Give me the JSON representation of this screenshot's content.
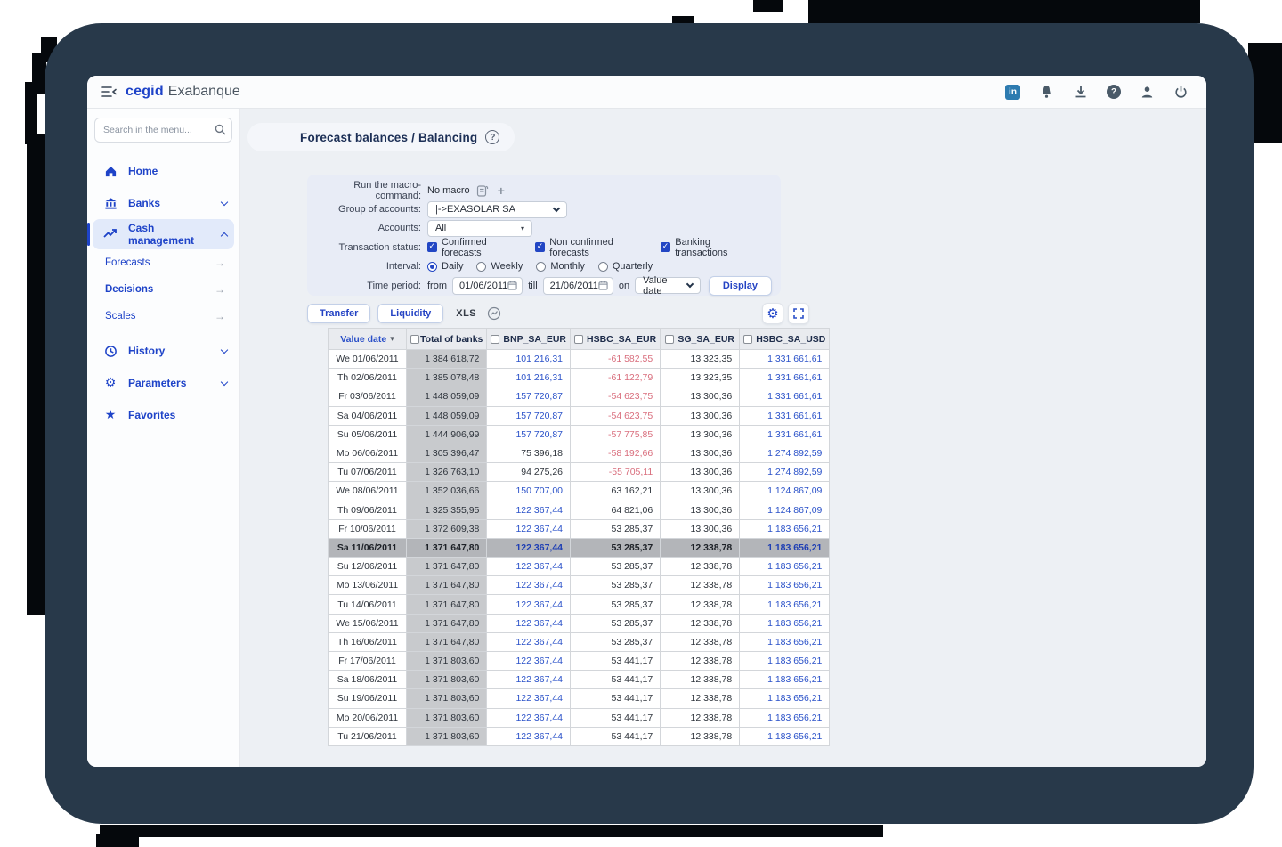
{
  "icons": {
    "linkedin": "in",
    "help": "?",
    "plus": "+",
    "star": "★",
    "gear": "⚙",
    "sub_arrow": "→",
    "sort_desc": "▾",
    "dropdown_caret": "▾"
  },
  "topbar": {
    "brand_bold": "cegid",
    "brand_rest": "Exabanque"
  },
  "sidebar": {
    "search_placeholder": "Search in the menu...",
    "items": [
      {
        "label": "Home"
      },
      {
        "label": "Banks"
      },
      {
        "label": "Cash management"
      },
      {
        "label": "Forecasts"
      },
      {
        "label": "Decisions"
      },
      {
        "label": "Scales"
      },
      {
        "label": "History"
      },
      {
        "label": "Parameters"
      },
      {
        "label": "Favorites"
      }
    ]
  },
  "page": {
    "title": "Forecast balances / Balancing"
  },
  "form": {
    "macro_label": "Run the macro-command:",
    "macro_value": "No macro",
    "group_label": "Group of accounts:",
    "group_value": "|->EXASOLAR SA",
    "accounts_label": "Accounts:",
    "accounts_value": "All",
    "status_label": "Transaction status:",
    "status_options": [
      "Confirmed forecasts",
      "Non confirmed forecasts",
      "Banking transactions"
    ],
    "interval_label": "Interval:",
    "interval_options": [
      {
        "label": "Daily",
        "selected": true
      },
      {
        "label": "Weekly",
        "selected": false
      },
      {
        "label": "Monthly",
        "selected": false
      },
      {
        "label": "Quarterly",
        "selected": false
      }
    ],
    "period_label": "Time period:",
    "from_label": "from",
    "from_value": "01/06/2011",
    "till_label": "till",
    "till_value": "21/06/2011",
    "on_label": "on",
    "on_value": "Value date",
    "display_button": "Display"
  },
  "toolbar": {
    "transfer": "Transfer",
    "liquidity": "Liquidity",
    "xls": "XLS"
  },
  "table": {
    "columns": [
      "Value date",
      "Total of banks",
      "BNP_SA_EUR",
      "HSBC_SA_EUR",
      "SG_SA_EUR",
      "HSBC_SA_USD"
    ],
    "rows": [
      {
        "d": "We 01/06/2011",
        "sel": false,
        "c": [
          [
            "1 384 618,72",
            "dark"
          ],
          [
            "101 216,31",
            "blue"
          ],
          [
            "-61 582,55",
            "red"
          ],
          [
            "13 323,35",
            "dark"
          ],
          [
            "1 331 661,61",
            "blue"
          ]
        ]
      },
      {
        "d": "Th 02/06/2011",
        "sel": false,
        "c": [
          [
            "1 385 078,48",
            "dark"
          ],
          [
            "101 216,31",
            "blue"
          ],
          [
            "-61 122,79",
            "red"
          ],
          [
            "13 323,35",
            "dark"
          ],
          [
            "1 331 661,61",
            "blue"
          ]
        ]
      },
      {
        "d": "Fr 03/06/2011",
        "sel": false,
        "c": [
          [
            "1 448 059,09",
            "dark"
          ],
          [
            "157 720,87",
            "blue"
          ],
          [
            "-54 623,75",
            "red"
          ],
          [
            "13 300,36",
            "dark"
          ],
          [
            "1 331 661,61",
            "blue"
          ]
        ]
      },
      {
        "d": "Sa 04/06/2011",
        "sel": false,
        "c": [
          [
            "1 448 059,09",
            "dark"
          ],
          [
            "157 720,87",
            "blue"
          ],
          [
            "-54 623,75",
            "red"
          ],
          [
            "13 300,36",
            "dark"
          ],
          [
            "1 331 661,61",
            "blue"
          ]
        ]
      },
      {
        "d": "Su 05/06/2011",
        "sel": false,
        "c": [
          [
            "1 444 906,99",
            "dark"
          ],
          [
            "157 720,87",
            "blue"
          ],
          [
            "-57 775,85",
            "red"
          ],
          [
            "13 300,36",
            "dark"
          ],
          [
            "1 331 661,61",
            "blue"
          ]
        ]
      },
      {
        "d": "Mo 06/06/2011",
        "sel": false,
        "c": [
          [
            "1 305 396,47",
            "dark"
          ],
          [
            "75 396,18",
            "dark"
          ],
          [
            "-58 192,66",
            "red"
          ],
          [
            "13 300,36",
            "dark"
          ],
          [
            "1 274 892,59",
            "blue"
          ]
        ]
      },
      {
        "d": "Tu 07/06/2011",
        "sel": false,
        "c": [
          [
            "1 326 763,10",
            "dark"
          ],
          [
            "94 275,26",
            "dark"
          ],
          [
            "-55 705,11",
            "red"
          ],
          [
            "13 300,36",
            "dark"
          ],
          [
            "1 274 892,59",
            "blue"
          ]
        ]
      },
      {
        "d": "We 08/06/2011",
        "sel": false,
        "c": [
          [
            "1 352 036,66",
            "dark"
          ],
          [
            "150 707,00",
            "blue"
          ],
          [
            "63 162,21",
            "dark"
          ],
          [
            "13 300,36",
            "dark"
          ],
          [
            "1 124 867,09",
            "blue"
          ]
        ]
      },
      {
        "d": "Th 09/06/2011",
        "sel": false,
        "c": [
          [
            "1 325 355,95",
            "dark"
          ],
          [
            "122 367,44",
            "blue"
          ],
          [
            "64 821,06",
            "dark"
          ],
          [
            "13 300,36",
            "dark"
          ],
          [
            "1 124 867,09",
            "blue"
          ]
        ]
      },
      {
        "d": "Fr 10/06/2011",
        "sel": false,
        "c": [
          [
            "1 372 609,38",
            "dark"
          ],
          [
            "122 367,44",
            "blue"
          ],
          [
            "53 285,37",
            "dark"
          ],
          [
            "13 300,36",
            "dark"
          ],
          [
            "1 183 656,21",
            "blue"
          ]
        ]
      },
      {
        "d": "Sa 11/06/2011",
        "sel": true,
        "c": [
          [
            "1 371 647,80",
            "dark"
          ],
          [
            "122 367,44",
            "blue"
          ],
          [
            "53 285,37",
            "dark"
          ],
          [
            "12 338,78",
            "dark"
          ],
          [
            "1 183 656,21",
            "blue"
          ]
        ]
      },
      {
        "d": "Su 12/06/2011",
        "sel": false,
        "c": [
          [
            "1 371 647,80",
            "dark"
          ],
          [
            "122 367,44",
            "blue"
          ],
          [
            "53 285,37",
            "dark"
          ],
          [
            "12 338,78",
            "dark"
          ],
          [
            "1 183 656,21",
            "blue"
          ]
        ]
      },
      {
        "d": "Mo 13/06/2011",
        "sel": false,
        "c": [
          [
            "1 371 647,80",
            "dark"
          ],
          [
            "122 367,44",
            "blue"
          ],
          [
            "53 285,37",
            "dark"
          ],
          [
            "12 338,78",
            "dark"
          ],
          [
            "1 183 656,21",
            "blue"
          ]
        ]
      },
      {
        "d": "Tu 14/06/2011",
        "sel": false,
        "c": [
          [
            "1 371 647,80",
            "dark"
          ],
          [
            "122 367,44",
            "blue"
          ],
          [
            "53 285,37",
            "dark"
          ],
          [
            "12 338,78",
            "dark"
          ],
          [
            "1 183 656,21",
            "blue"
          ]
        ]
      },
      {
        "d": "We 15/06/2011",
        "sel": false,
        "c": [
          [
            "1 371 647,80",
            "dark"
          ],
          [
            "122 367,44",
            "blue"
          ],
          [
            "53 285,37",
            "dark"
          ],
          [
            "12 338,78",
            "dark"
          ],
          [
            "1 183 656,21",
            "blue"
          ]
        ]
      },
      {
        "d": "Th 16/06/2011",
        "sel": false,
        "c": [
          [
            "1 371 647,80",
            "dark"
          ],
          [
            "122 367,44",
            "blue"
          ],
          [
            "53 285,37",
            "dark"
          ],
          [
            "12 338,78",
            "dark"
          ],
          [
            "1 183 656,21",
            "blue"
          ]
        ]
      },
      {
        "d": "Fr 17/06/2011",
        "sel": false,
        "c": [
          [
            "1 371 803,60",
            "dark"
          ],
          [
            "122 367,44",
            "blue"
          ],
          [
            "53 441,17",
            "dark"
          ],
          [
            "12 338,78",
            "dark"
          ],
          [
            "1 183 656,21",
            "blue"
          ]
        ]
      },
      {
        "d": "Sa 18/06/2011",
        "sel": false,
        "c": [
          [
            "1 371 803,60",
            "dark"
          ],
          [
            "122 367,44",
            "blue"
          ],
          [
            "53 441,17",
            "dark"
          ],
          [
            "12 338,78",
            "dark"
          ],
          [
            "1 183 656,21",
            "blue"
          ]
        ]
      },
      {
        "d": "Su 19/06/2011",
        "sel": false,
        "c": [
          [
            "1 371 803,60",
            "dark"
          ],
          [
            "122 367,44",
            "blue"
          ],
          [
            "53 441,17",
            "dark"
          ],
          [
            "12 338,78",
            "dark"
          ],
          [
            "1 183 656,21",
            "blue"
          ]
        ]
      },
      {
        "d": "Mo 20/06/2011",
        "sel": false,
        "c": [
          [
            "1 371 803,60",
            "dark"
          ],
          [
            "122 367,44",
            "blue"
          ],
          [
            "53 441,17",
            "dark"
          ],
          [
            "12 338,78",
            "dark"
          ],
          [
            "1 183 656,21",
            "blue"
          ]
        ]
      },
      {
        "d": "Tu 21/06/2011",
        "sel": false,
        "c": [
          [
            "1 371 803,60",
            "dark"
          ],
          [
            "122 367,44",
            "blue"
          ],
          [
            "53 441,17",
            "dark"
          ],
          [
            "12 338,78",
            "dark"
          ],
          [
            "1 183 656,21",
            "blue"
          ]
        ]
      }
    ]
  },
  "colors": {
    "accent_blue": "#1e43c8",
    "value_blue": "#2b52c9",
    "negative_red": "#d96e7d",
    "bezel_navy": "#28394a",
    "selected_row_bg": "#b3b5b9",
    "total_column_bg": "#c8cacd"
  }
}
